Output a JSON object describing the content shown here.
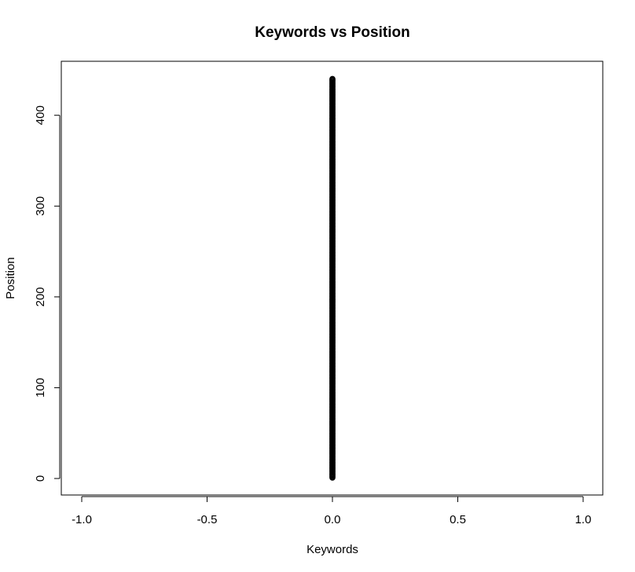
{
  "chart_data": {
    "type": "scatter",
    "title": "Keywords vs Position",
    "xlabel": "Keywords",
    "ylabel": "Position",
    "xlim": [
      -1.0,
      1.0
    ],
    "ylim": [
      0,
      440
    ],
    "x_ticks": [
      -1.0,
      -0.5,
      0.0,
      0.5,
      1.0
    ],
    "x_tick_labels": [
      "-1.0",
      "-0.5",
      "0.0",
      "0.5",
      "1.0"
    ],
    "y_ticks": [
      0,
      100,
      200,
      300,
      400
    ],
    "y_tick_labels": [
      "0",
      "100",
      "200",
      "300",
      "400"
    ],
    "grid": false,
    "series": [
      {
        "x_constant": 0.0,
        "y_range": [
          1,
          440
        ],
        "y_step": 1,
        "marker": "open-circle",
        "color": "#000000"
      }
    ]
  }
}
